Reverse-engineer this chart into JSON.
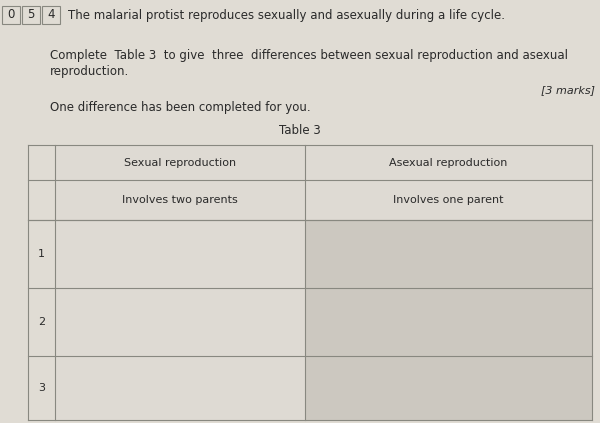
{
  "page_bg": "#e0dcd4",
  "header_text": "The malarial protist reproduces sexually and asexually during a life cycle.",
  "question_numbers": [
    "0",
    "5",
    "4"
  ],
  "body_text_line1": "Complete  Table 3  to give  three  differences between sexual reproduction and asexual",
  "body_text_line2": "reproduction.",
  "marks_text": "[3 marks]",
  "one_diff_text": "One difference has been completed for you.",
  "table_title": "Table 3",
  "col_header_left": "Sexual reproduction",
  "col_header_right": "Asexual reproduction",
  "example_left": "Involves two parents",
  "example_right": "Involves one parent",
  "row_labels": [
    "1",
    "2",
    "3"
  ],
  "table_fill_header": "#dedad3",
  "table_fill_example": "#dedad3",
  "table_fill_answer_left": "#dedad3",
  "table_fill_answer_right": "#ccc8c0",
  "line_color": "#888880",
  "text_color": "#2a2a2a",
  "font_size_body": 8.5,
  "font_size_table": 8.0,
  "font_size_marks": 8.0,
  "font_size_qnum": 8.5
}
